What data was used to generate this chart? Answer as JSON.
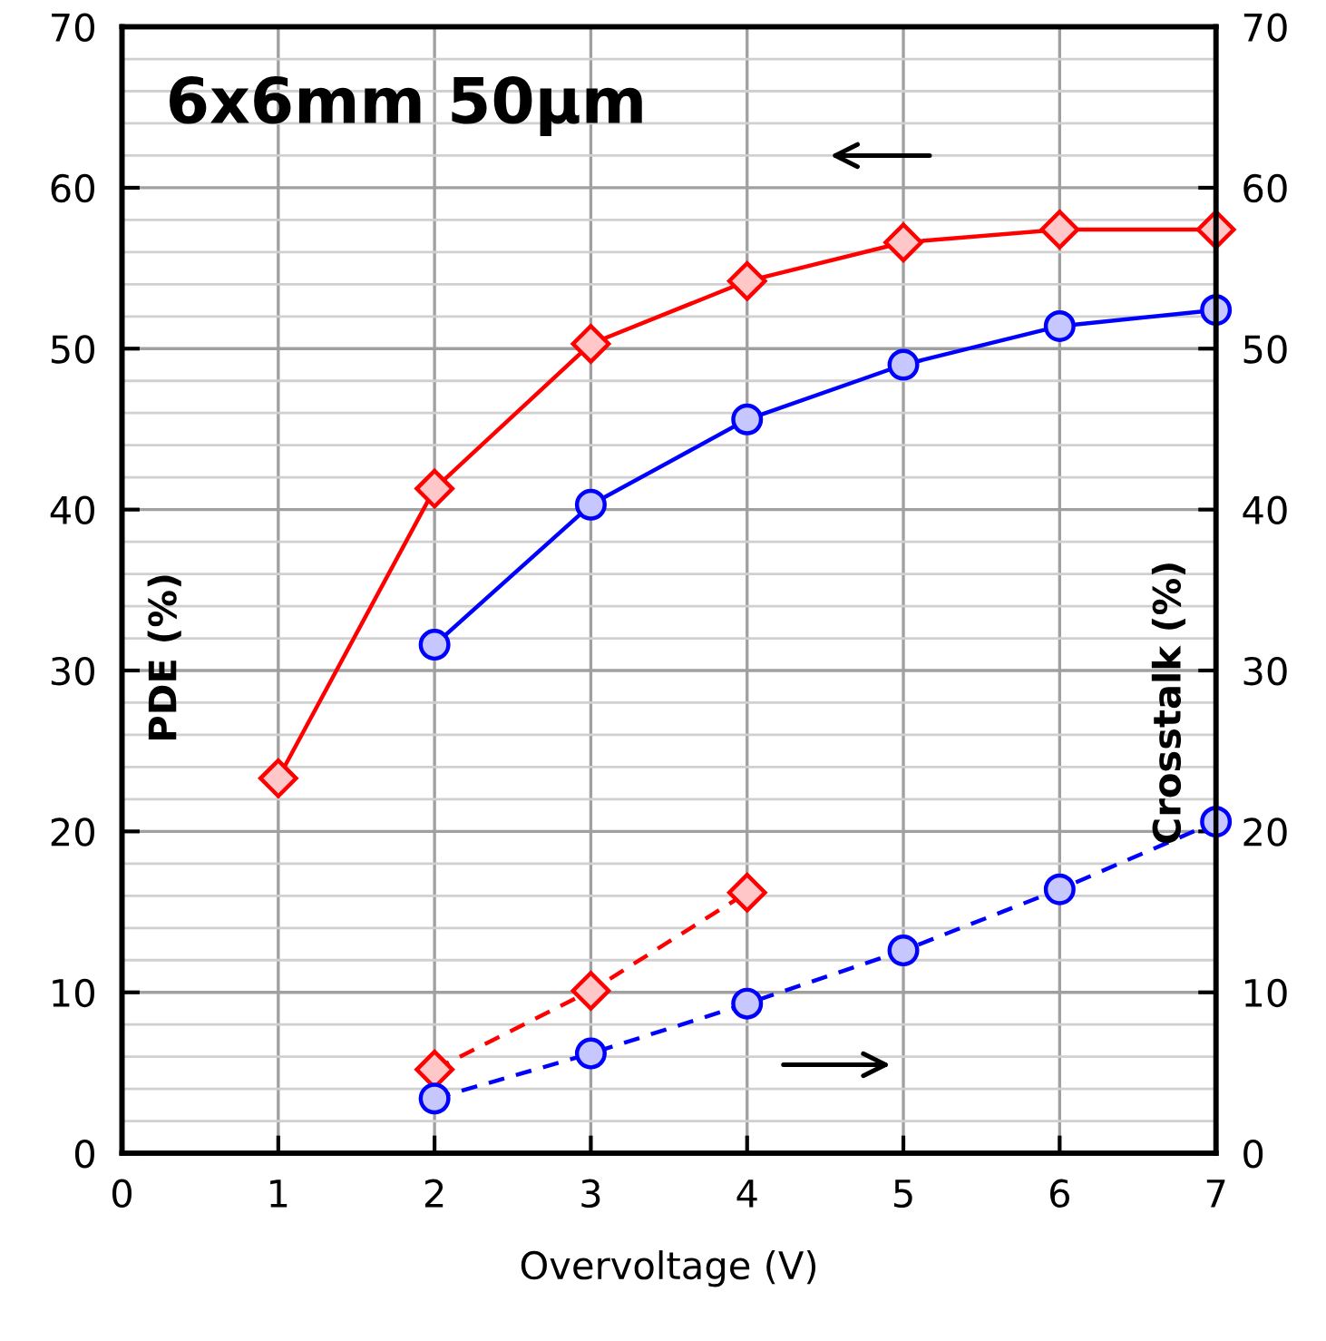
{
  "chart_data": {
    "type": "line",
    "title": "6x6mm 50µm",
    "xlabel": "Overvoltage (V)",
    "ylabel": "PDE (%)",
    "y2label": "Crosstalk (%)",
    "xlim": [
      0,
      7
    ],
    "xticks": [
      0,
      1,
      2,
      3,
      4,
      5,
      6,
      7
    ],
    "ylim": [
      0,
      70
    ],
    "yticks": [
      0,
      10,
      20,
      30,
      40,
      50,
      60,
      70
    ],
    "y2lim": [
      0,
      70
    ],
    "y2ticks": [
      0,
      10,
      20,
      30,
      40,
      50,
      60,
      70
    ],
    "grid": true,
    "series": [
      {
        "color": "#ff0000",
        "marker": "diamond",
        "line_style": "solid",
        "x": [
          1,
          2,
          3,
          4,
          5,
          6,
          7
        ],
        "values": [
          23.3,
          41.3,
          50.3,
          54.2,
          56.6,
          57.4,
          57.4
        ]
      },
      {
        "color": "#0000ff",
        "marker": "circle",
        "line_style": "solid",
        "x": [
          2,
          3,
          4,
          5,
          6,
          7
        ],
        "values": [
          31.6,
          40.3,
          45.6,
          49.0,
          51.4,
          52.4
        ]
      },
      {
        "color": "#ff0000",
        "marker": "diamond",
        "line_style": "dashed",
        "axis": "y2",
        "x": [
          2,
          3,
          4
        ],
        "values": [
          5.2,
          10.1,
          16.2
        ]
      },
      {
        "color": "#0000ff",
        "marker": "circle",
        "line_style": "dashed",
        "axis": "y2",
        "x": [
          2,
          3,
          4,
          5,
          6,
          7
        ],
        "values": [
          3.4,
          6.2,
          9.3,
          12.6,
          16.4,
          20.6
        ]
      }
    ]
  }
}
